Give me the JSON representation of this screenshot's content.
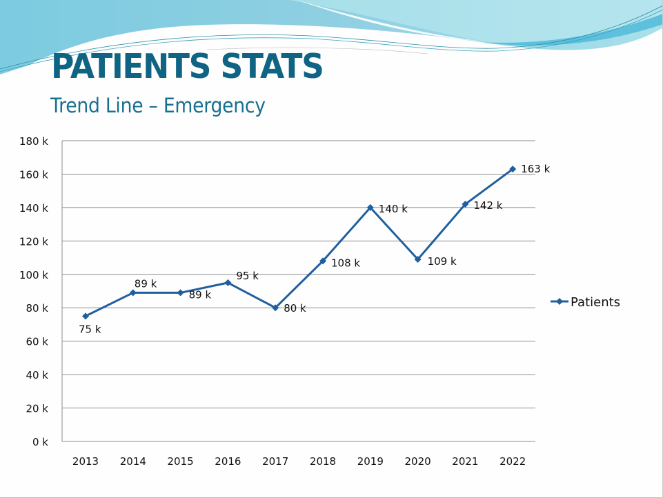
{
  "slide": {
    "title": "PATIENTS STATS",
    "subtitle": "Trend Line – Emergency"
  },
  "colors": {
    "title": "#0e6482",
    "series_line": "#1f5f9e",
    "wave_light": "#9fd8e6",
    "wave_dark": "#5cc3dc",
    "gridline": "#8c8c8c"
  },
  "chart_data": {
    "type": "line",
    "title": "",
    "xlabel": "",
    "ylabel": "",
    "categories": [
      "2013",
      "2014",
      "2015",
      "2016",
      "2017",
      "2018",
      "2019",
      "2020",
      "2021",
      "2022"
    ],
    "series": [
      {
        "name": "Patients",
        "values": [
          75,
          89,
          89,
          95,
          80,
          108,
          140,
          109,
          142,
          163
        ],
        "data_labels": [
          "75 k",
          "89 k",
          "89 k",
          "95 k",
          "80 k",
          "108 k",
          "140 k",
          "109 k",
          "142 k",
          "163 k"
        ],
        "marker": "diamond"
      }
    ],
    "ylim": [
      0,
      180
    ],
    "yticks": [
      0,
      20,
      40,
      60,
      80,
      100,
      120,
      140,
      160,
      180
    ],
    "ytick_labels": [
      "0 k",
      "20 k",
      "40 k",
      "60 k",
      "80 k",
      "100 k",
      "120 k",
      "140 k",
      "160 k",
      "180 k"
    ],
    "units": "thousands",
    "grid": true,
    "legend": {
      "position": "right",
      "entries": [
        "Patients"
      ]
    }
  }
}
